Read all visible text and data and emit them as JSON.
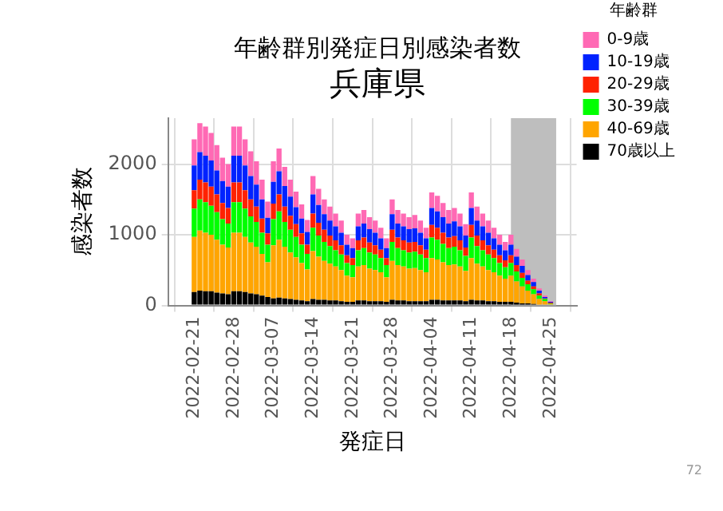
{
  "chart_data": {
    "type": "bar",
    "title": "年齢群別発症日別感染者数",
    "subtitle": "兵庫県",
    "xlabel": "発症日",
    "ylabel": "感染者数",
    "legend_title": "年齢群",
    "legend": "right",
    "grid": true,
    "stacked": true,
    "x": [
      "2022-02-21",
      "2022-02-22",
      "2022-02-23",
      "2022-02-24",
      "2022-02-25",
      "2022-02-26",
      "2022-02-27",
      "2022-02-28",
      "2022-03-01",
      "2022-03-02",
      "2022-03-03",
      "2022-03-04",
      "2022-03-05",
      "2022-03-06",
      "2022-03-07",
      "2022-03-08",
      "2022-03-09",
      "2022-03-10",
      "2022-03-11",
      "2022-03-12",
      "2022-03-13",
      "2022-03-14",
      "2022-03-15",
      "2022-03-16",
      "2022-03-17",
      "2022-03-18",
      "2022-03-19",
      "2022-03-20",
      "2022-03-21",
      "2022-03-22",
      "2022-03-23",
      "2022-03-24",
      "2022-03-25",
      "2022-03-26",
      "2022-03-27",
      "2022-03-28",
      "2022-03-29",
      "2022-03-30",
      "2022-03-31",
      "2022-04-01",
      "2022-04-02",
      "2022-04-03",
      "2022-04-04",
      "2022-04-05",
      "2022-04-06",
      "2022-04-07",
      "2022-04-08",
      "2022-04-09",
      "2022-04-10",
      "2022-04-11",
      "2022-04-12",
      "2022-04-13",
      "2022-04-14",
      "2022-04-15",
      "2022-04-16",
      "2022-04-17",
      "2022-04-18",
      "2022-04-19",
      "2022-04-20",
      "2022-04-21",
      "2022-04-22",
      "2022-04-23",
      "2022-04-24",
      "2022-04-25"
    ],
    "xlim": [
      "2022-02-20",
      "2022-04-26"
    ],
    "xticks": [
      "2022-02-21",
      "2022-02-28",
      "2022-03-07",
      "2022-03-14",
      "2022-03-21",
      "2022-03-28",
      "2022-04-04",
      "2022-04-11",
      "2022-04-18",
      "2022-04-25"
    ],
    "ylim": [
      0,
      2650
    ],
    "yticks": [
      0,
      1000,
      2000
    ],
    "series": [
      {
        "name": "70歳以上",
        "color": "#000000",
        "values": [
          190,
          210,
          200,
          200,
          180,
          170,
          160,
          200,
          200,
          190,
          170,
          160,
          140,
          120,
          100,
          110,
          100,
          90,
          80,
          70,
          60,
          90,
          80,
          80,
          70,
          70,
          60,
          50,
          50,
          70,
          70,
          60,
          60,
          60,
          50,
          80,
          70,
          70,
          60,
          60,
          60,
          60,
          80,
          80,
          70,
          70,
          70,
          70,
          60,
          80,
          70,
          70,
          60,
          60,
          50,
          50,
          50,
          40,
          30,
          30,
          20,
          0,
          0,
          0
        ]
      },
      {
        "name": "40-69歳",
        "color": "#ffa500",
        "values": [
          780,
          850,
          830,
          800,
          750,
          690,
          660,
          830,
          830,
          780,
          720,
          670,
          590,
          490,
          750,
          820,
          730,
          660,
          600,
          530,
          450,
          680,
          610,
          550,
          520,
          480,
          440,
          370,
          350,
          480,
          500,
          460,
          440,
          410,
          350,
          550,
          500,
          480,
          460,
          470,
          440,
          410,
          590,
          570,
          540,
          500,
          510,
          480,
          430,
          590,
          520,
          480,
          440,
          410,
          370,
          330,
          370,
          300,
          240,
          180,
          140,
          90,
          60,
          20
        ]
      },
      {
        "name": "30-39歳",
        "color": "#00ff00",
        "values": [
          400,
          440,
          430,
          410,
          390,
          360,
          340,
          430,
          430,
          400,
          370,
          350,
          300,
          250,
          370,
          400,
          350,
          320,
          290,
          260,
          220,
          330,
          300,
          270,
          250,
          230,
          220,
          180,
          170,
          230,
          240,
          230,
          220,
          200,
          170,
          270,
          240,
          230,
          230,
          230,
          220,
          200,
          290,
          280,
          260,
          240,
          250,
          230,
          210,
          290,
          250,
          230,
          220,
          200,
          180,
          160,
          180,
          140,
          120,
          90,
          70,
          50,
          30,
          10
        ]
      },
      {
        "name": "20-29歳",
        "color": "#ff2200",
        "values": [
          260,
          280,
          280,
          270,
          250,
          230,
          220,
          280,
          280,
          260,
          240,
          220,
          200,
          160,
          220,
          240,
          220,
          200,
          180,
          160,
          130,
          200,
          180,
          170,
          150,
          140,
          130,
          110,
          100,
          140,
          150,
          140,
          130,
          120,
          100,
          170,
          150,
          140,
          140,
          140,
          130,
          120,
          180,
          170,
          160,
          150,
          150,
          140,
          120,
          180,
          150,
          140,
          130,
          120,
          110,
          100,
          110,
          90,
          70,
          50,
          40,
          30,
          10,
          10
        ]
      },
      {
        "name": "10-19歳",
        "color": "#0022ff",
        "values": [
          350,
          390,
          380,
          370,
          340,
          310,
          300,
          380,
          380,
          350,
          330,
          310,
          270,
          220,
          310,
          330,
          290,
          270,
          240,
          210,
          180,
          270,
          250,
          220,
          210,
          200,
          180,
          150,
          140,
          200,
          200,
          190,
          180,
          160,
          140,
          220,
          200,
          200,
          190,
          190,
          180,
          160,
          240,
          230,
          220,
          200,
          210,
          200,
          170,
          240,
          210,
          200,
          180,
          160,
          150,
          140,
          150,
          120,
          100,
          80,
          60,
          40,
          20,
          10
        ]
      },
      {
        "name": "0-9歳",
        "color": "#ff69b4",
        "values": [
          370,
          410,
          410,
          390,
          360,
          330,
          320,
          410,
          410,
          370,
          350,
          330,
          280,
          230,
          290,
          320,
          270,
          240,
          220,
          200,
          170,
          260,
          230,
          210,
          200,
          180,
          170,
          140,
          140,
          180,
          190,
          170,
          170,
          150,
          140,
          210,
          190,
          180,
          170,
          190,
          170,
          150,
          220,
          220,
          200,
          190,
          190,
          180,
          160,
          220,
          200,
          180,
          170,
          150,
          140,
          120,
          140,
          110,
          90,
          70,
          50,
          30,
          20,
          10
        ]
      }
    ],
    "bands": [
      {
        "axis": "x",
        "from": "2022-04-18",
        "to": "2022-04-26",
        "color": "#bebebe"
      }
    ],
    "annotations": [
      "72"
    ]
  }
}
